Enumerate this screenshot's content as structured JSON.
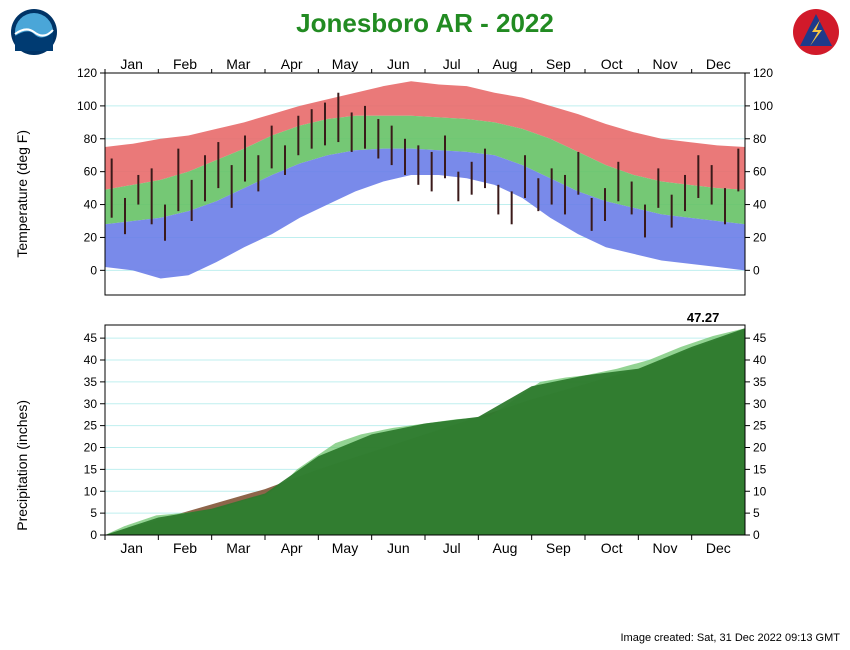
{
  "title": "Jonesboro AR - 2022",
  "title_color": "#228B22",
  "title_fontsize": 26,
  "footer_text": "Image created: Sat, 31 Dec 2022 09:13 GMT",
  "months": [
    "Jan",
    "Feb",
    "Mar",
    "Apr",
    "May",
    "Jun",
    "Jul",
    "Aug",
    "Sep",
    "Oct",
    "Nov",
    "Dec"
  ],
  "month_fontsize": 14,
  "logos": {
    "left": {
      "name": "noaa-logo",
      "outer_color": "#003366",
      "inner_top": "#4aa6d8",
      "inner_bottom": "#003b72",
      "wave": "#ffffff"
    },
    "right": {
      "name": "nws-logo",
      "bg": "#d11a2a",
      "triangle": "#1e3a8a",
      "bolt": "#f6c544"
    }
  },
  "temp_chart": {
    "type": "range-band-with-bars",
    "ylabel": "Temperature (deg F)",
    "ylim": [
      -15,
      120
    ],
    "ytick_step": 20,
    "yticks": [
      0,
      20,
      40,
      60,
      80,
      100,
      120
    ],
    "background_color": "#ffffff",
    "grid_color": "#bfefef",
    "border_color": "#000000",
    "colors": {
      "record_high_band": "#e86a6a",
      "normal_band": "#66c266",
      "record_low_band": "#6a7de8",
      "actual_bar": "#3a1a1a"
    },
    "band_record_high": [
      75,
      77,
      80,
      82,
      86,
      90,
      95,
      100,
      104,
      108,
      112,
      115,
      113,
      112,
      108,
      105,
      100,
      95,
      89,
      84,
      80,
      78,
      76,
      75
    ],
    "band_normal_high": [
      49,
      52,
      55,
      60,
      67,
      74,
      82,
      88,
      92,
      94,
      94,
      94,
      93,
      92,
      90,
      86,
      80,
      72,
      64,
      58,
      54,
      52,
      50,
      49
    ],
    "band_normal_low": [
      28,
      30,
      32,
      36,
      42,
      50,
      58,
      65,
      70,
      73,
      74,
      74,
      73,
      72,
      70,
      64,
      56,
      48,
      42,
      38,
      34,
      32,
      30,
      28
    ],
    "band_record_low": [
      2,
      0,
      -5,
      -3,
      5,
      14,
      22,
      32,
      40,
      48,
      54,
      58,
      58,
      56,
      52,
      44,
      32,
      22,
      14,
      10,
      6,
      4,
      2,
      0
    ],
    "actual_high": [
      68,
      44,
      58,
      62,
      40,
      74,
      55,
      70,
      78,
      64,
      82,
      70,
      88,
      76,
      94,
      98,
      102,
      108,
      96,
      100,
      92,
      88,
      80,
      76,
      72,
      82,
      60,
      66,
      74,
      52,
      48,
      70,
      56,
      62,
      58,
      72,
      44,
      50,
      66,
      54,
      40,
      62,
      46,
      58,
      70,
      64,
      50,
      74
    ],
    "actual_low": [
      32,
      22,
      40,
      28,
      18,
      36,
      30,
      42,
      50,
      38,
      54,
      48,
      62,
      58,
      70,
      74,
      76,
      78,
      72,
      74,
      68,
      64,
      58,
      52,
      48,
      56,
      42,
      46,
      50,
      34,
      28,
      44,
      36,
      40,
      34,
      46,
      24,
      30,
      42,
      34,
      20,
      38,
      26,
      36,
      44,
      40,
      28,
      48
    ]
  },
  "precip_chart": {
    "type": "cumulative-area",
    "ylabel": "Precipitation (inches)",
    "ylim": [
      0,
      48
    ],
    "yticks": [
      0,
      5,
      10,
      15,
      20,
      25,
      30,
      35,
      40,
      45
    ],
    "background_color": "#ffffff",
    "grid_color": "#bfefef",
    "border_color": "#000000",
    "annotation": "47.27",
    "annotation_fontsize": 13,
    "colors": {
      "normal_line": "#7a4a2a",
      "actual_area": "#2d7a2d",
      "actual_area_light": "#6fc46f"
    },
    "normal_cumulative": [
      0,
      3.5,
      7,
      10.5,
      15,
      19,
      23,
      27,
      31,
      34.5,
      38,
      42.5,
      47
    ],
    "actual_cumulative": [
      0,
      4,
      6,
      9.5,
      18,
      23,
      25.5,
      27,
      34,
      36.5,
      38,
      43,
      47.27
    ],
    "actual_steps": [
      [
        0,
        0
      ],
      [
        0.03,
        2
      ],
      [
        0.08,
        4.5
      ],
      [
        0.12,
        5
      ],
      [
        0.15,
        5.5
      ],
      [
        0.18,
        6
      ],
      [
        0.22,
        8
      ],
      [
        0.25,
        9
      ],
      [
        0.28,
        12
      ],
      [
        0.3,
        15
      ],
      [
        0.33,
        18
      ],
      [
        0.36,
        21
      ],
      [
        0.4,
        23
      ],
      [
        0.45,
        24.5
      ],
      [
        0.5,
        25.5
      ],
      [
        0.55,
        26.5
      ],
      [
        0.6,
        27
      ],
      [
        0.63,
        30
      ],
      [
        0.66,
        33
      ],
      [
        0.68,
        35
      ],
      [
        0.72,
        36
      ],
      [
        0.75,
        36.5
      ],
      [
        0.8,
        38
      ],
      [
        0.85,
        40
      ],
      [
        0.9,
        43
      ],
      [
        0.95,
        45.5
      ],
      [
        1.0,
        47.27
      ]
    ]
  }
}
